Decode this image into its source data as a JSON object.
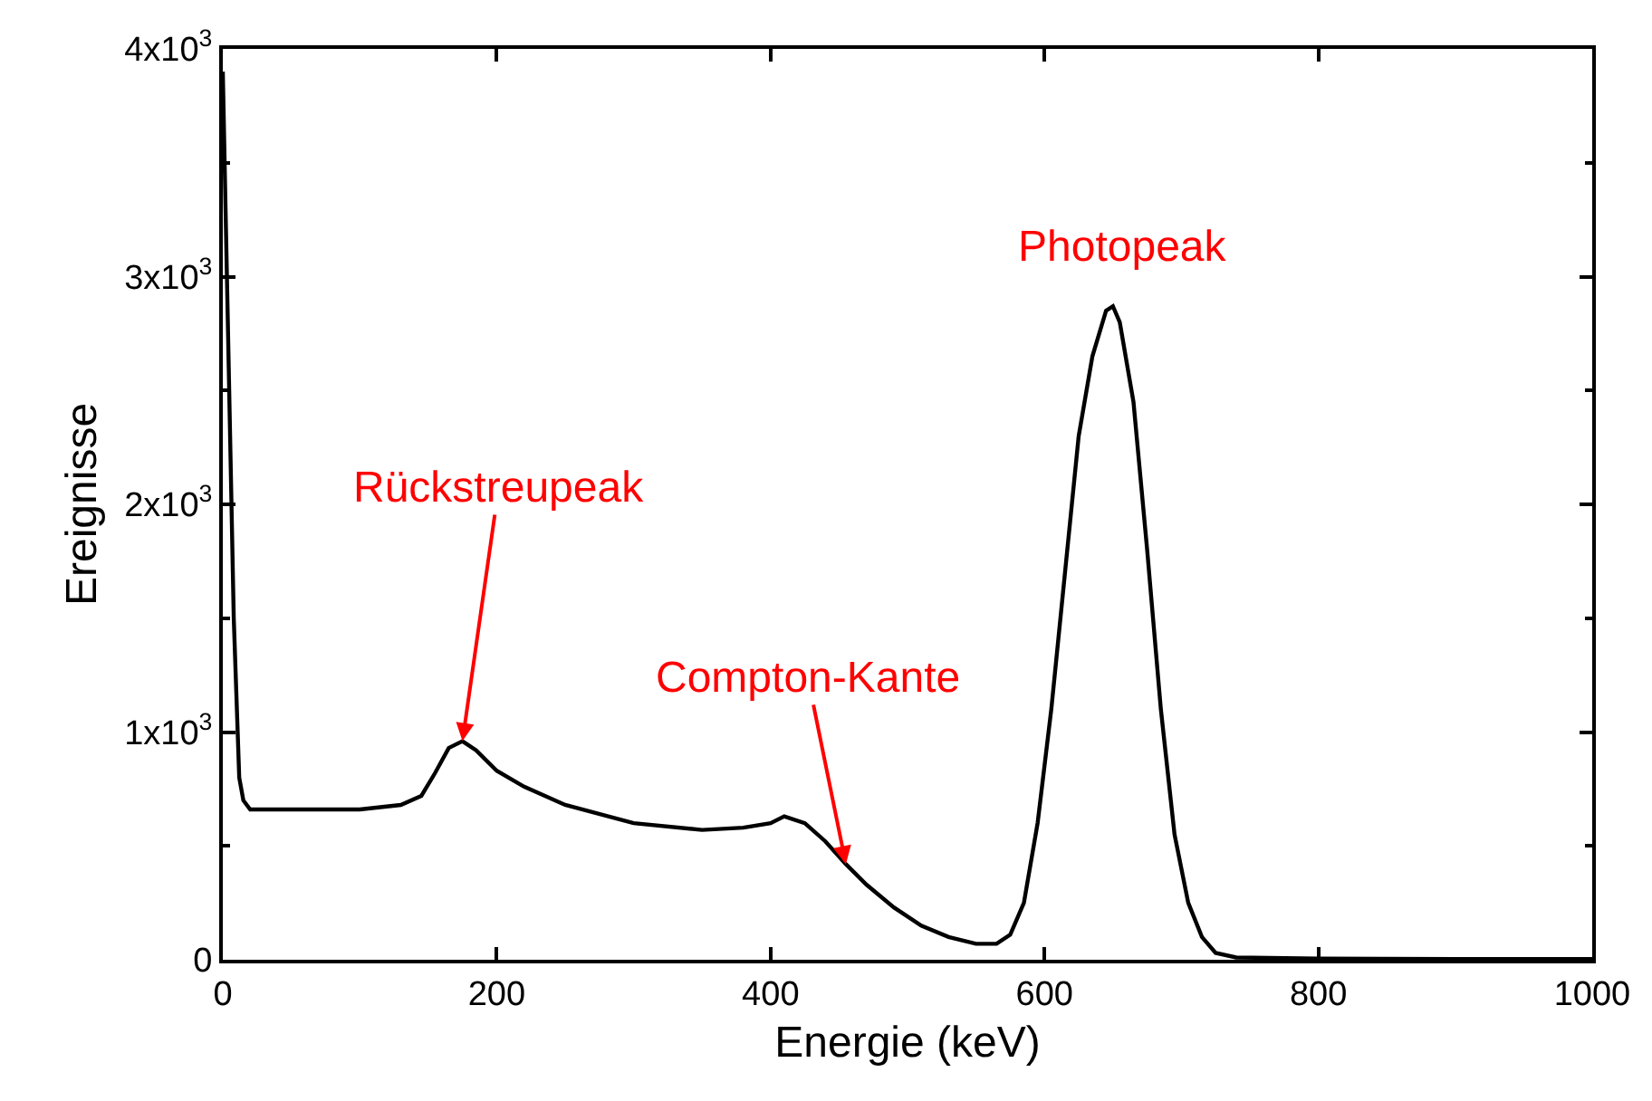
{
  "chart_data": {
    "type": "line",
    "xlabel": "Energie (keV)",
    "ylabel": "Ereignisse",
    "x": [
      0,
      3,
      8,
      12,
      15,
      20,
      50,
      100,
      130,
      145,
      155,
      165,
      175,
      185,
      200,
      220,
      250,
      300,
      350,
      380,
      400,
      410,
      425,
      440,
      455,
      470,
      490,
      510,
      530,
      550,
      565,
      575,
      585,
      595,
      605,
      615,
      625,
      635,
      645,
      650,
      655,
      665,
      675,
      685,
      695,
      705,
      715,
      725,
      740,
      800,
      900,
      1000
    ],
    "series": [
      {
        "color": "#000000",
        "values": [
          3900,
          3000,
          1500,
          800,
          700,
          660,
          660,
          660,
          680,
          720,
          820,
          930,
          960,
          920,
          830,
          760,
          680,
          600,
          570,
          580,
          600,
          630,
          600,
          520,
          420,
          330,
          230,
          150,
          100,
          70,
          70,
          110,
          250,
          600,
          1100,
          1700,
          2300,
          2650,
          2850,
          2870,
          2800,
          2450,
          1800,
          1100,
          550,
          250,
          100,
          30,
          10,
          5,
          3,
          3
        ]
      }
    ],
    "xlim": [
      0,
      1000
    ],
    "xticks": [
      0,
      200,
      400,
      600,
      800,
      1000
    ],
    "ylim": [
      0,
      4000
    ],
    "yticks": [
      0,
      {
        "value": 1000,
        "label": "1x10$^{3}$"
      },
      {
        "value": 2000,
        "label": "2x10$^{3}$"
      },
      {
        "value": 3000,
        "label": "3x10$^{3}$"
      },
      {
        "value": 4000,
        "label": "4x10$^{3}$"
      }
    ],
    "annotations": [
      {
        "text": "Rückstreupeak",
        "x": 175,
        "y": 960
      },
      {
        "text": "Compton-Kante",
        "x": 455,
        "y": 420
      },
      {
        "text": "Photopeak",
        "x": 650,
        "y": 2870
      }
    ],
    "marker": "none",
    "line_style": "solid"
  }
}
